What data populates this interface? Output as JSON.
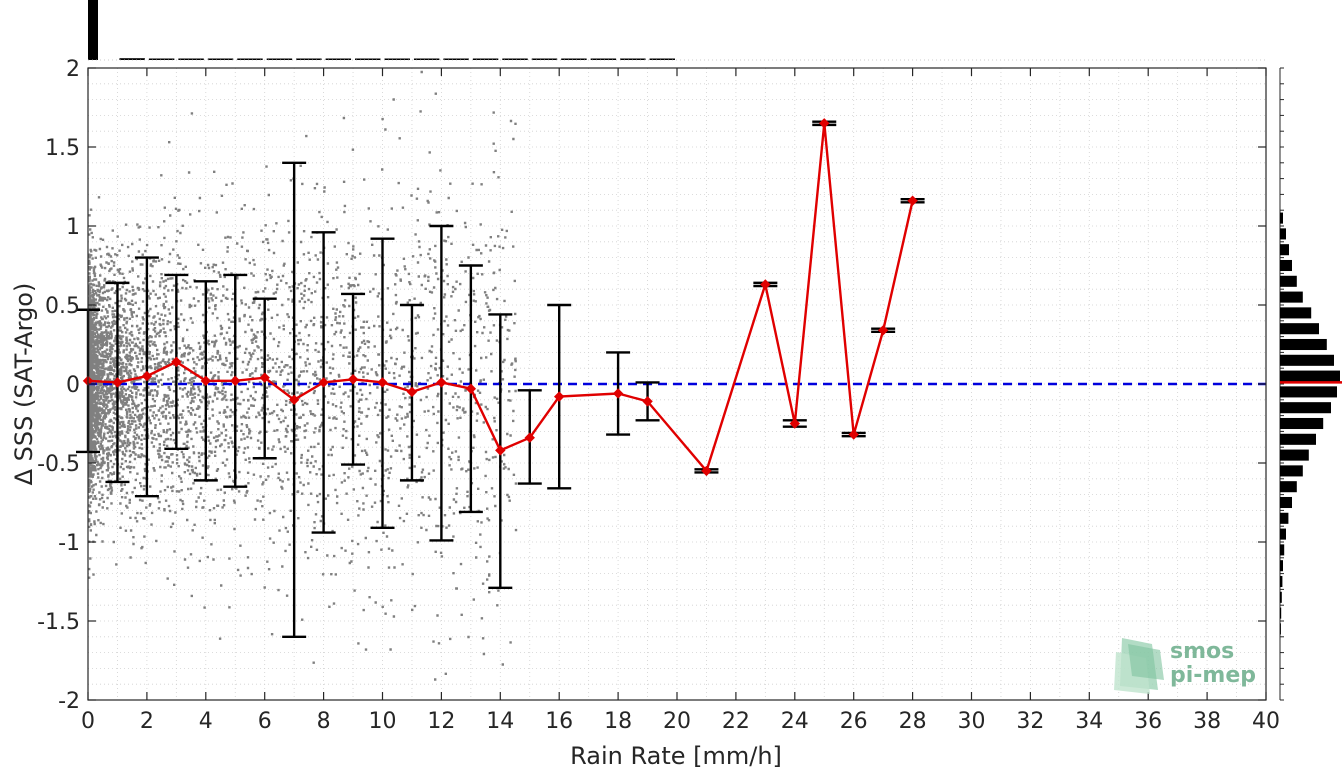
{
  "chart_data": {
    "type": "scatter",
    "xlabel": "Rain Rate [mm/h]",
    "ylabel": "Δ SSS (SAT-Argo)",
    "xlim": [
      0,
      40
    ],
    "ylim": [
      -2,
      2
    ],
    "x_ticks": [
      "0",
      "2",
      "4",
      "6",
      "8",
      "10",
      "12",
      "14",
      "16",
      "18",
      "20",
      "22",
      "24",
      "26",
      "28",
      "30",
      "32",
      "34",
      "36",
      "38",
      "40"
    ],
    "y_ticks": [
      "2",
      "1.5",
      "1",
      "0.5",
      "0",
      "-0.5",
      "-1",
      "-1.5",
      "-2"
    ],
    "grid": true,
    "reference_line": {
      "y": 0,
      "style": "dashed",
      "color": "#0000dd"
    },
    "series": [
      {
        "type": "scatter",
        "color": "#808080",
        "description_of_distribution": "dense near 0 mm/h, sparse beyond 12 mm/h"
      },
      {
        "type": "line-with-errorbars",
        "color": "#e00000",
        "errorbar_color": "#000000",
        "points": [
          {
            "x": 0,
            "y": 0.02,
            "lo": -0.43,
            "hi": 0.47
          },
          {
            "x": 1,
            "y": 0.01,
            "lo": -0.62,
            "hi": 0.64
          },
          {
            "x": 2,
            "y": 0.05,
            "lo": -0.71,
            "hi": 0.8
          },
          {
            "x": 3,
            "y": 0.14,
            "lo": -0.41,
            "hi": 0.69
          },
          {
            "x": 4,
            "y": 0.02,
            "lo": -0.61,
            "hi": 0.65
          },
          {
            "x": 5,
            "y": 0.02,
            "lo": -0.65,
            "hi": 0.69
          },
          {
            "x": 6,
            "y": 0.04,
            "lo": -0.47,
            "hi": 0.54
          },
          {
            "x": 7,
            "y": -0.1,
            "lo": -1.6,
            "hi": 1.4
          },
          {
            "x": 8,
            "y": 0.01,
            "lo": -0.94,
            "hi": 0.96
          },
          {
            "x": 9,
            "y": 0.03,
            "lo": -0.51,
            "hi": 0.57
          },
          {
            "x": 10,
            "y": 0.01,
            "lo": -0.91,
            "hi": 0.92
          },
          {
            "x": 11,
            "y": -0.05,
            "lo": -0.61,
            "hi": 0.5
          },
          {
            "x": 12,
            "y": 0.01,
            "lo": -0.99,
            "hi": 1.0
          },
          {
            "x": 13,
            "y": -0.03,
            "lo": -0.81,
            "hi": 0.75
          },
          {
            "x": 14,
            "y": -0.42,
            "lo": -1.29,
            "hi": 0.44
          },
          {
            "x": 15,
            "y": -0.34,
            "lo": -0.63,
            "hi": -0.04
          },
          {
            "x": 16,
            "y": -0.08,
            "lo": -0.66,
            "hi": 0.5
          },
          {
            "x": 18,
            "y": -0.06,
            "lo": -0.32,
            "hi": 0.2
          },
          {
            "x": 19,
            "y": -0.11,
            "lo": -0.23,
            "hi": 0.01
          },
          {
            "x": 21,
            "y": -0.55,
            "lo": -0.56,
            "hi": -0.54
          },
          {
            "x": 23,
            "y": 0.63,
            "lo": 0.62,
            "hi": 0.64
          },
          {
            "x": 24,
            "y": -0.25,
            "lo": -0.27,
            "hi": -0.23
          },
          {
            "x": 25,
            "y": 1.65,
            "lo": 1.64,
            "hi": 1.66
          },
          {
            "x": 26,
            "y": -0.32,
            "lo": -0.33,
            "hi": -0.31
          },
          {
            "x": 27,
            "y": 0.34,
            "lo": 0.33,
            "hi": 0.35
          },
          {
            "x": 28,
            "y": 1.16,
            "lo": 1.15,
            "hi": 1.17
          }
        ]
      }
    ],
    "top_histogram": {
      "bins": [
        0,
        1,
        2,
        3,
        4,
        5,
        6,
        7,
        8,
        9,
        10,
        11,
        12,
        13,
        14,
        15,
        16,
        17,
        18,
        19
      ],
      "relative_heights": [
        1.0,
        0.03,
        0.02,
        0.015,
        0.015,
        0.015,
        0.01,
        0.01,
        0.01,
        0.01,
        0.008,
        0.008,
        0.008,
        0.006,
        0.006,
        0.006,
        0.005,
        0.005,
        0.005,
        0.004
      ]
    },
    "right_histogram": {
      "y_centers": [
        1.05,
        0.95,
        0.85,
        0.75,
        0.65,
        0.55,
        0.45,
        0.35,
        0.25,
        0.15,
        0.05,
        -0.05,
        -0.15,
        -0.25,
        -0.35,
        -0.45,
        -0.55,
        -0.65,
        -0.75,
        -0.85,
        -0.95,
        -1.05,
        -1.15,
        -1.25,
        -1.35,
        -1.45,
        -1.55
      ],
      "relative_widths": [
        0.05,
        0.1,
        0.15,
        0.2,
        0.28,
        0.38,
        0.52,
        0.65,
        0.78,
        0.9,
        1.0,
        0.95,
        0.85,
        0.72,
        0.6,
        0.48,
        0.38,
        0.28,
        0.2,
        0.14,
        0.1,
        0.07,
        0.05,
        0.04,
        0.03,
        0.02,
        0.015
      ],
      "mean_line_y": 0.01,
      "mean_line_color": "#e00000"
    },
    "logo": {
      "line1": "smos",
      "line2": "pi-mep"
    }
  }
}
